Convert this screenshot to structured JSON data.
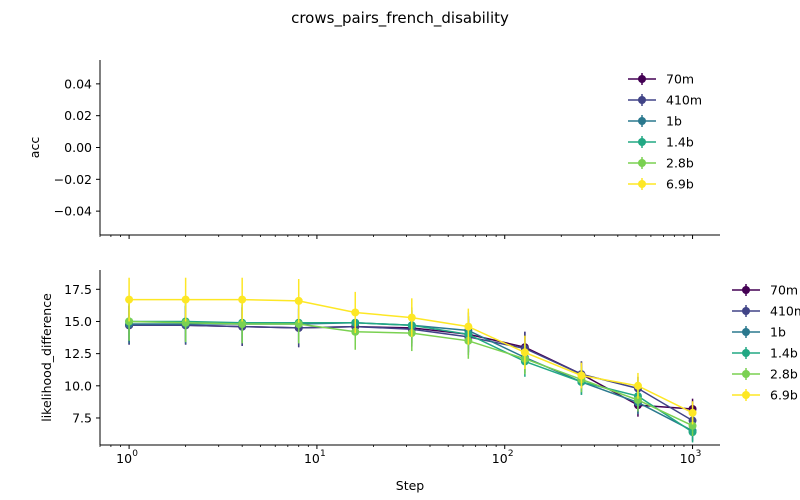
{
  "chart_data": {
    "title": "crows_pairs_french_disability",
    "xlabel": "Step",
    "x": [
      1,
      2,
      4,
      8,
      16,
      32,
      64,
      128,
      256,
      512,
      1000
    ],
    "xscale": "log",
    "xticks": [
      {
        "value": 1,
        "base": "10",
        "exp": "0"
      },
      {
        "value": 10,
        "base": "10",
        "exp": "1"
      },
      {
        "value": 100,
        "base": "10",
        "exp": "2"
      },
      {
        "value": 1000,
        "base": "10",
        "exp": "3"
      }
    ],
    "series_names": [
      "70m",
      "410m",
      "1b",
      "1.4b",
      "2.8b",
      "6.9b"
    ],
    "colors": [
      "#440154",
      "#414487",
      "#2a788e",
      "#22a884",
      "#7ad151",
      "#fde725"
    ],
    "panels": [
      {
        "type": "line",
        "ylabel": "acc",
        "ylim": [
          -0.055,
          0.055
        ],
        "yticks": [
          0.04,
          0.02,
          0.0,
          -0.02,
          -0.04
        ],
        "ytick_labels": [
          "0.04",
          "0.02",
          "0.00",
          "−0.02",
          "−0.04"
        ],
        "legend": "upper-right-inside",
        "series": []
      },
      {
        "type": "line",
        "ylabel": "likelihood_difference",
        "ylim": [
          5.4,
          19.0
        ],
        "yticks": [
          17.5,
          15.0,
          12.5,
          10.0,
          7.5
        ],
        "ytick_labels": [
          "17.5",
          "15.0",
          "12.5",
          "10.0",
          "7.5"
        ],
        "legend": "right-outside",
        "series": [
          {
            "name": "70m",
            "values": [
              14.7,
              14.7,
              14.6,
              14.5,
              14.6,
              14.5,
              14.0,
              13.0,
              10.9,
              8.5,
              8.2
            ],
            "err": [
              1.5,
              1.5,
              1.5,
              1.5,
              1.4,
              1.4,
              1.4,
              1.2,
              1.0,
              0.9,
              0.8
            ]
          },
          {
            "name": "410m",
            "values": [
              14.7,
              14.7,
              14.6,
              14.5,
              14.6,
              14.4,
              13.8,
              12.9,
              10.9,
              9.8,
              7.3
            ],
            "err": [
              1.5,
              1.5,
              1.5,
              1.5,
              1.4,
              1.4,
              1.4,
              1.3,
              1.0,
              0.9,
              0.8
            ]
          },
          {
            "name": "1b",
            "values": [
              14.8,
              14.8,
              14.8,
              14.8,
              14.9,
              14.7,
              14.3,
              12.2,
              10.3,
              8.7,
              6.5
            ],
            "err": [
              1.5,
              1.5,
              1.5,
              1.5,
              1.4,
              1.4,
              1.4,
              1.2,
              1.0,
              0.9,
              0.8
            ]
          },
          {
            "name": "1.4b",
            "values": [
              15.0,
              15.0,
              14.9,
              14.9,
              14.9,
              14.7,
              14.0,
              11.9,
              10.3,
              9.2,
              6.4
            ],
            "err": [
              1.5,
              1.5,
              1.5,
              1.5,
              1.4,
              1.4,
              1.4,
              1.2,
              1.0,
              0.9,
              0.8
            ]
          },
          {
            "name": "2.8b",
            "values": [
              15.0,
              14.9,
              14.8,
              14.8,
              14.2,
              14.1,
              13.5,
              12.1,
              10.5,
              8.9,
              6.9
            ],
            "err": [
              1.5,
              1.5,
              1.5,
              1.5,
              1.4,
              1.4,
              1.4,
              1.2,
              1.0,
              0.9,
              0.8
            ]
          },
          {
            "name": "6.9b",
            "values": [
              16.7,
              16.7,
              16.7,
              16.6,
              15.7,
              15.3,
              14.6,
              12.6,
              10.8,
              10.0,
              7.9
            ],
            "err": [
              1.7,
              1.7,
              1.7,
              1.7,
              1.6,
              1.5,
              1.4,
              1.3,
              1.0,
              1.0,
              0.9
            ]
          }
        ]
      }
    ]
  }
}
